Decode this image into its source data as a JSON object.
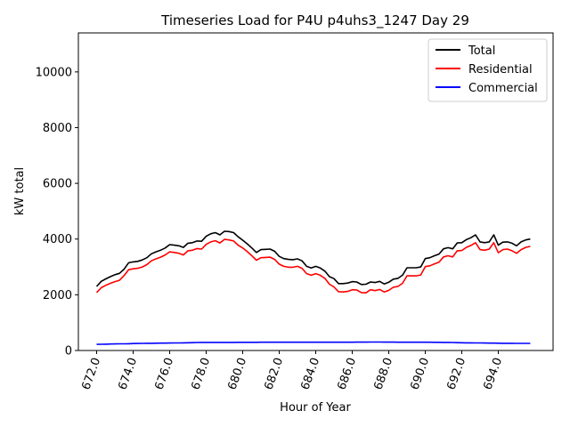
{
  "chart_data": {
    "type": "line",
    "title": "Timeseries Load for P4U p4uhs3_1247  Day 29",
    "xlabel": "Hour of Year",
    "ylabel": "kW total",
    "xlim": [
      671.0,
      697.0
    ],
    "ylim": [
      0,
      11400
    ],
    "xticks": [
      672.0,
      674.0,
      676.0,
      678.0,
      680.0,
      682.0,
      684.0,
      686.0,
      688.0,
      690.0,
      692.0,
      694.0
    ],
    "xtick_labels": [
      "672.0",
      "674.0",
      "676.0",
      "678.0",
      "680.0",
      "682.0",
      "684.0",
      "686.0",
      "688.0",
      "690.0",
      "692.0",
      "694.0"
    ],
    "yticks": [
      0,
      2000,
      4000,
      6000,
      8000,
      10000
    ],
    "ytick_labels": [
      "0",
      "2000",
      "4000",
      "6000",
      "8000",
      "10000"
    ],
    "legend_position": "top-right",
    "x": [
      672.0,
      672.25,
      672.5,
      672.75,
      673.0,
      673.25,
      673.5,
      673.75,
      674.0,
      674.25,
      674.5,
      674.75,
      675.0,
      675.25,
      675.5,
      675.75,
      676.0,
      676.25,
      676.5,
      676.75,
      677.0,
      677.25,
      677.5,
      677.75,
      678.0,
      678.25,
      678.5,
      678.75,
      679.0,
      679.25,
      679.5,
      679.75,
      680.0,
      680.25,
      680.5,
      680.75,
      681.0,
      681.25,
      681.5,
      681.75,
      682.0,
      682.25,
      682.5,
      682.75,
      683.0,
      683.25,
      683.5,
      683.75,
      684.0,
      684.25,
      684.5,
      684.75,
      685.0,
      685.25,
      685.5,
      685.75,
      686.0,
      686.25,
      686.5,
      686.75,
      687.0,
      687.25,
      687.5,
      687.75,
      688.0,
      688.25,
      688.5,
      688.75,
      689.0,
      689.25,
      689.5,
      689.75,
      690.0,
      690.25,
      690.5,
      690.75,
      691.0,
      691.25,
      691.5,
      691.75,
      692.0,
      692.25,
      692.5,
      692.75,
      693.0,
      693.25,
      693.5,
      693.75,
      694.0,
      694.25,
      694.5,
      694.75,
      695.0,
      695.25,
      695.5,
      695.75
    ],
    "series": [
      {
        "name": "Total",
        "color": "#000000",
        "values": [
          2300,
          2480,
          2570,
          2650,
          2720,
          2770,
          2920,
          3150,
          3180,
          3200,
          3250,
          3330,
          3470,
          3540,
          3600,
          3680,
          3800,
          3780,
          3760,
          3700,
          3850,
          3870,
          3930,
          3920,
          4100,
          4190,
          4230,
          4150,
          4280,
          4270,
          4230,
          4080,
          3960,
          3830,
          3680,
          3520,
          3620,
          3630,
          3640,
          3560,
          3380,
          3300,
          3270,
          3260,
          3290,
          3220,
          3020,
          2960,
          3020,
          2960,
          2850,
          2650,
          2580,
          2400,
          2400,
          2420,
          2470,
          2460,
          2370,
          2380,
          2460,
          2440,
          2480,
          2390,
          2450,
          2560,
          2590,
          2700,
          2970,
          2970,
          2970,
          3000,
          3300,
          3330,
          3400,
          3460,
          3650,
          3690,
          3650,
          3860,
          3870,
          3980,
          4050,
          4150,
          3900,
          3870,
          3900,
          4150,
          3780,
          3890,
          3900,
          3850,
          3760,
          3900,
          3970,
          4000
        ]
      },
      {
        "name": "Residential",
        "color": "#ff0000",
        "values": [
          2080,
          2250,
          2340,
          2410,
          2470,
          2520,
          2690,
          2900,
          2930,
          2950,
          3000,
          3080,
          3220,
          3290,
          3350,
          3430,
          3540,
          3520,
          3490,
          3430,
          3580,
          3600,
          3660,
          3640,
          3810,
          3900,
          3940,
          3860,
          3990,
          3970,
          3930,
          3780,
          3680,
          3550,
          3400,
          3240,
          3330,
          3340,
          3350,
          3270,
          3100,
          3020,
          2990,
          2990,
          3020,
          2950,
          2760,
          2700,
          2760,
          2700,
          2590,
          2380,
          2280,
          2110,
          2100,
          2120,
          2180,
          2170,
          2080,
          2070,
          2180,
          2150,
          2190,
          2100,
          2160,
          2270,
          2300,
          2410,
          2680,
          2680,
          2680,
          2710,
          3010,
          3040,
          3110,
          3170,
          3360,
          3400,
          3360,
          3580,
          3590,
          3700,
          3770,
          3870,
          3620,
          3600,
          3640,
          3870,
          3510,
          3620,
          3640,
          3580,
          3490,
          3620,
          3700,
          3740
        ]
      },
      {
        "name": "Commercial",
        "color": "#0000ff",
        "values": [
          220,
          224,
          228,
          232,
          236,
          238,
          240,
          244,
          248,
          252,
          256,
          258,
          260,
          262,
          264,
          266,
          268,
          270,
          272,
          275,
          278,
          282,
          286,
          290,
          292,
          292,
          291,
          290,
          290,
          291,
          292,
          293,
          294,
          295,
          295,
          295,
          296,
          296,
          296,
          296,
          296,
          296,
          296,
          296,
          296,
          296,
          296,
          297,
          297,
          297,
          297,
          297,
          297,
          297,
          297,
          298,
          298,
          299,
          300,
          301,
          302,
          302,
          302,
          301,
          300,
          299,
          298,
          297,
          297,
          297,
          297,
          296,
          296,
          296,
          295,
          294,
          292,
          290,
          286,
          282,
          278,
          276,
          274,
          272,
          270,
          268,
          266,
          264,
          262,
          260,
          258,
          258,
          257,
          256,
          255,
          254
        ]
      }
    ]
  }
}
